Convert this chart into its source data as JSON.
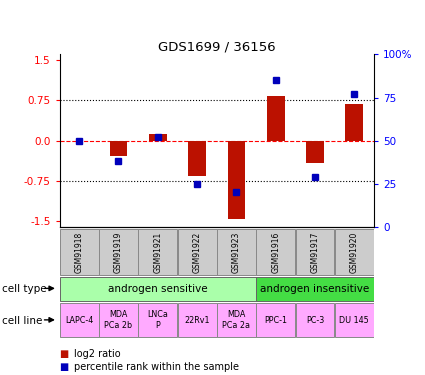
{
  "title": "GDS1699 / 36156",
  "samples": [
    "GSM91918",
    "GSM91919",
    "GSM91921",
    "GSM91922",
    "GSM91923",
    "GSM91916",
    "GSM91917",
    "GSM91920"
  ],
  "log2_ratio": [
    0.0,
    -0.28,
    0.13,
    -0.65,
    -1.45,
    0.82,
    -0.42,
    0.68
  ],
  "percentile_rank": [
    50,
    38,
    52,
    25,
    20,
    85,
    29,
    77
  ],
  "cell_type_groups": [
    {
      "label": "androgen sensitive",
      "span": [
        0,
        5
      ],
      "color": "#aaffaa"
    },
    {
      "label": "androgen insensitive",
      "span": [
        5,
        8
      ],
      "color": "#44dd44"
    }
  ],
  "cell_lines": [
    "LAPC-4",
    "MDA\nPCa 2b",
    "LNCa\nP",
    "22Rv1",
    "MDA\nPCa 2a",
    "PPC-1",
    "PC-3",
    "DU 145"
  ],
  "cell_line_color": "#ffaaff",
  "sample_bg_color": "#cccccc",
  "bar_color": "#bb1100",
  "point_color": "#0000bb",
  "ylim_left": [
    -1.6,
    1.6
  ],
  "ylim_right": [
    0,
    100
  ],
  "yticks_left": [
    -1.5,
    -0.75,
    0.0,
    0.75,
    1.5
  ],
  "yticks_right": [
    0,
    25,
    50,
    75,
    100
  ],
  "legend_labels": [
    "log2 ratio",
    "percentile rank within the sample"
  ],
  "legend_colors": [
    "#bb1100",
    "#0000bb"
  ]
}
